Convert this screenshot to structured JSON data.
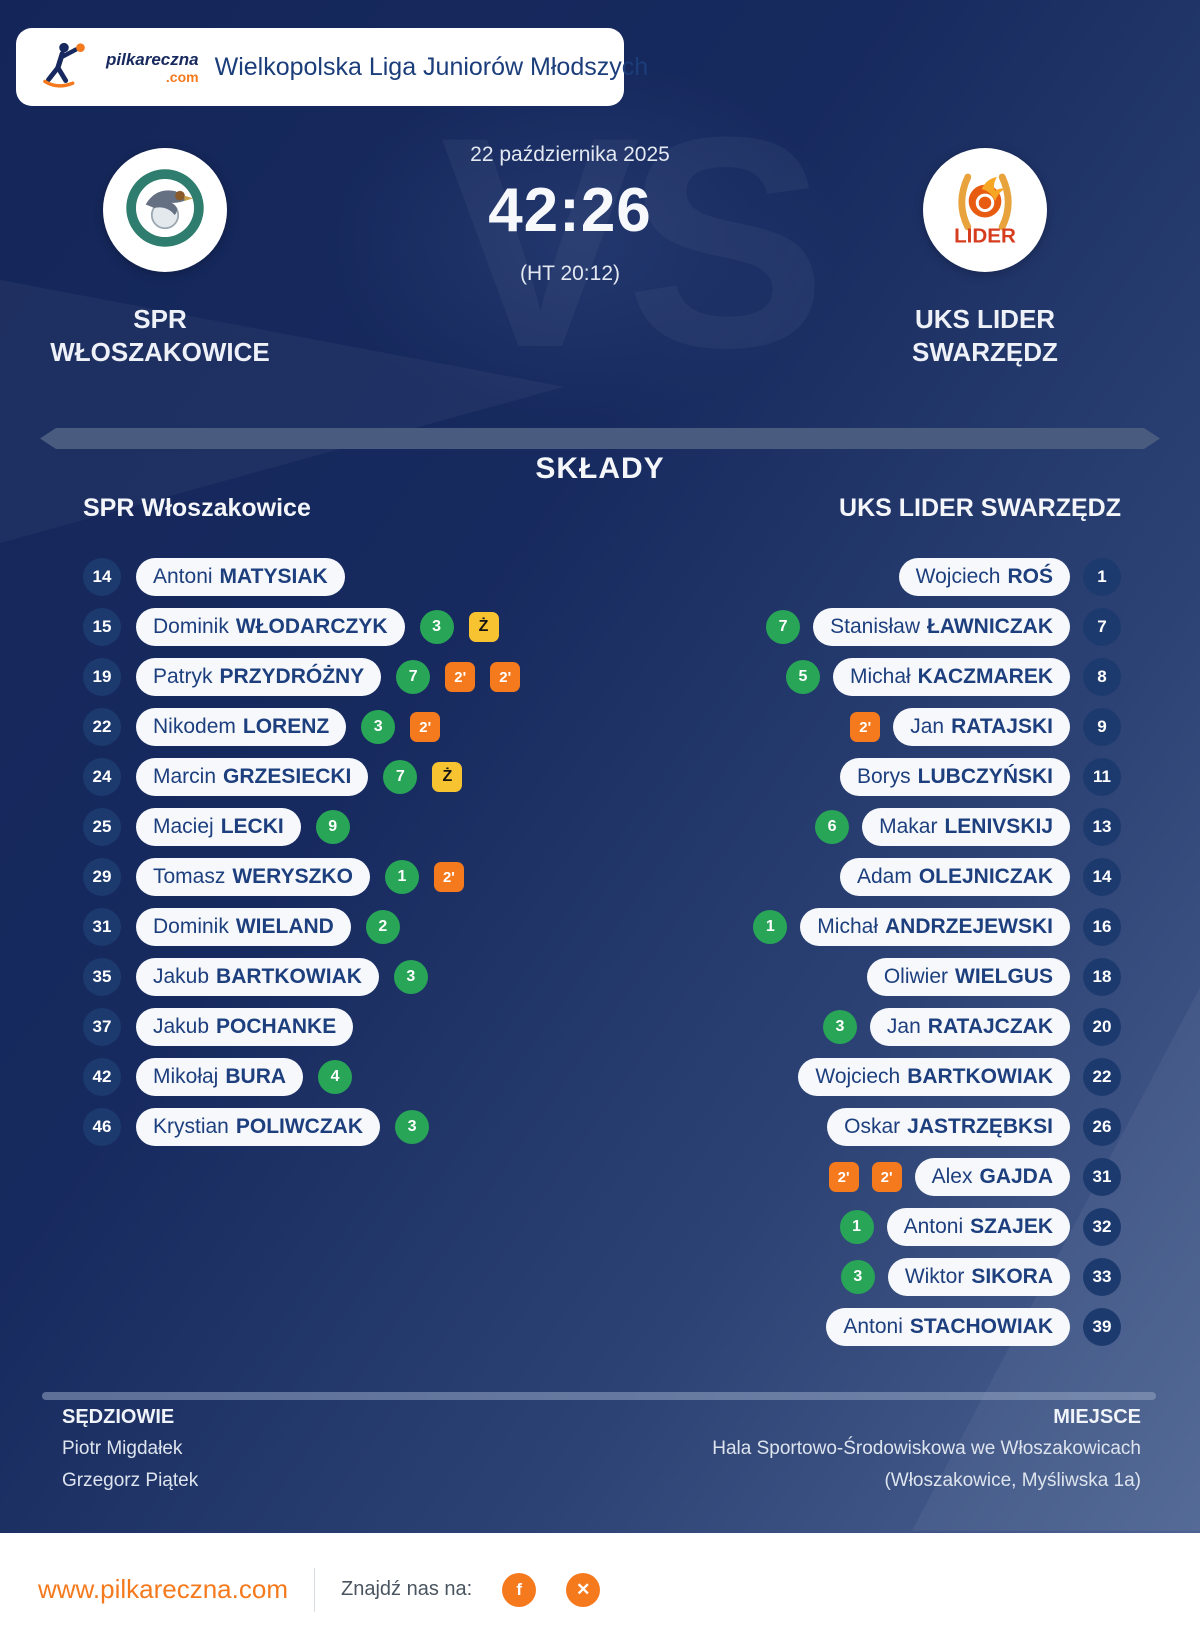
{
  "brand": {
    "logo_name": "pilkareczna",
    "logo_tld": ".com",
    "league": "Wielkopolska Liga Juniorów Młodszych"
  },
  "match": {
    "date": "22 października 2025",
    "score": "42:26",
    "halftime": "(HT 20:12)",
    "watermark": "VS",
    "home": {
      "line1": "SPR",
      "line2": "WŁOSZAKOWICE"
    },
    "away": {
      "line1": "UKS LIDER",
      "line2": "SWARZĘDZ",
      "logo_word": "LIDER"
    }
  },
  "lineups": {
    "title": "SKŁADY",
    "home": {
      "team": "SPR Włoszakowice",
      "players": [
        {
          "number": 14,
          "first": "Antoni",
          "last": "MATYSIAK",
          "goals": null,
          "cards": []
        },
        {
          "number": 15,
          "first": "Dominik",
          "last": "WŁODARCZYK",
          "goals": 3,
          "cards": [
            "Ż"
          ]
        },
        {
          "number": 19,
          "first": "Patryk",
          "last": "PRZYDRÓŻNY",
          "goals": 7,
          "cards": [
            "2'",
            "2'"
          ]
        },
        {
          "number": 22,
          "first": "Nikodem",
          "last": "LORENZ",
          "goals": 3,
          "cards": [
            "2'"
          ]
        },
        {
          "number": 24,
          "first": "Marcin",
          "last": "GRZESIECKI",
          "goals": 7,
          "cards": [
            "Ż"
          ]
        },
        {
          "number": 25,
          "first": "Maciej",
          "last": "LECKI",
          "goals": 9,
          "cards": []
        },
        {
          "number": 29,
          "first": "Tomasz",
          "last": "WERYSZKO",
          "goals": 1,
          "cards": [
            "2'"
          ]
        },
        {
          "number": 31,
          "first": "Dominik",
          "last": "WIELAND",
          "goals": 2,
          "cards": []
        },
        {
          "number": 35,
          "first": "Jakub",
          "last": "BARTKOWIAK",
          "goals": 3,
          "cards": []
        },
        {
          "number": 37,
          "first": "Jakub",
          "last": "POCHANKE",
          "goals": null,
          "cards": []
        },
        {
          "number": 42,
          "first": "Mikołaj",
          "last": "BURA",
          "goals": 4,
          "cards": []
        },
        {
          "number": 46,
          "first": "Krystian",
          "last": "POLIWCZAK",
          "goals": 3,
          "cards": []
        }
      ]
    },
    "away": {
      "team": "UKS LIDER SWARZĘDZ",
      "players": [
        {
          "number": 1,
          "first": "Wojciech",
          "last": "ROŚ",
          "goals": null,
          "cards": []
        },
        {
          "number": 7,
          "first": "Stanisław",
          "last": "ŁAWNICZAK",
          "goals": 7,
          "cards": []
        },
        {
          "number": 8,
          "first": "Michał",
          "last": "KACZMAREK",
          "goals": 5,
          "cards": []
        },
        {
          "number": 9,
          "first": "Jan",
          "last": "RATAJSKI",
          "goals": null,
          "cards": [
            "2'"
          ]
        },
        {
          "number": 11,
          "first": "Borys",
          "last": "LUBCZYŃSKI",
          "goals": null,
          "cards": []
        },
        {
          "number": 13,
          "first": "Makar",
          "last": "LENIVSKIJ",
          "goals": 6,
          "cards": []
        },
        {
          "number": 14,
          "first": "Adam",
          "last": "OLEJNICZAK",
          "goals": null,
          "cards": []
        },
        {
          "number": 16,
          "first": "Michał",
          "last": "ANDRZEJEWSKI",
          "goals": 1,
          "cards": []
        },
        {
          "number": 18,
          "first": "Oliwier",
          "last": "WIELGUS",
          "goals": null,
          "cards": []
        },
        {
          "number": 20,
          "first": "Jan",
          "last": "RATAJCZAK",
          "goals": 3,
          "cards": []
        },
        {
          "number": 22,
          "first": "Wojciech",
          "last": "BARTKOWIAK",
          "goals": null,
          "cards": []
        },
        {
          "number": 26,
          "first": "Oskar",
          "last": "JASTRZĘBKSI",
          "goals": null,
          "cards": []
        },
        {
          "number": 31,
          "first": "Alex",
          "last": "GAJDA",
          "goals": null,
          "cards": [
            "2'",
            "2'"
          ]
        },
        {
          "number": 32,
          "first": "Antoni",
          "last": "SZAJEK",
          "goals": 1,
          "cards": []
        },
        {
          "number": 33,
          "first": "Wiktor",
          "last": "SIKORA",
          "goals": 3,
          "cards": []
        },
        {
          "number": 39,
          "first": "Antoni",
          "last": "STACHOWIAK",
          "goals": null,
          "cards": []
        }
      ]
    }
  },
  "officials": {
    "referees_label": "SĘDZIOWIE",
    "referees": [
      "Piotr Migdałek",
      "Grzegorz Piątek"
    ],
    "venue_label": "MIEJSCE",
    "venue_lines": [
      "Hala Sportowo-Środowiskowa we Włoszakowicach",
      "(Włoszakowice, Myśliwska 1a)"
    ]
  },
  "footer": {
    "site": "www.pilkareczna.com",
    "find_us": "Znajdź nas na:",
    "social": [
      {
        "name": "facebook",
        "glyph": "f"
      },
      {
        "name": "x",
        "glyph": "✕"
      }
    ]
  },
  "colors": {
    "green": "#28a556",
    "orange": "#f57a1e",
    "yellow": "#f8c330",
    "navy": "#16295e"
  }
}
